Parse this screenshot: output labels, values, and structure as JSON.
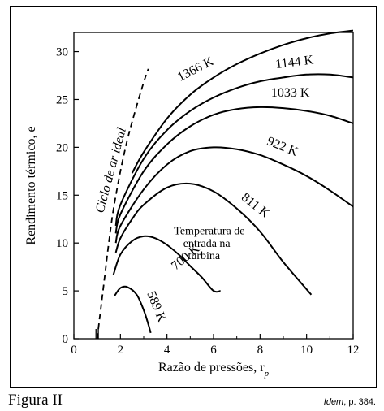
{
  "chart_data": {
    "type": "line",
    "xlabel": "Razão de pressões, r",
    "xlabel_sub": "p",
    "ylabel": "Rendimento térmico, e",
    "xlim": [
      0,
      12
    ],
    "ylim": [
      0,
      32
    ],
    "xticks": [
      0,
      2,
      4,
      6,
      8,
      10,
      12
    ],
    "yticks": [
      0,
      5,
      10,
      15,
      20,
      25,
      30
    ],
    "grid": false,
    "ideal_cycle": {
      "name": "Ciclo de ar ideal",
      "x": [
        1.0,
        1.1,
        1.2,
        1.35,
        1.5,
        1.7,
        2.0,
        2.3,
        2.6,
        3.0,
        3.2
      ],
      "y": [
        0,
        2.0,
        4.0,
        7.0,
        10.0,
        13.5,
        17.5,
        20.8,
        23.5,
        26.8,
        28.2
      ]
    },
    "series": [
      {
        "name": "1366 K",
        "x": [
          2.5,
          3,
          4,
          5,
          6,
          7,
          8,
          9,
          10,
          11,
          12
        ],
        "y": [
          17.3,
          19.5,
          23.0,
          25.5,
          27.3,
          28.7,
          29.8,
          30.7,
          31.4,
          31.9,
          32.2
        ]
      },
      {
        "name": "1144 K",
        "x": [
          1.8,
          2,
          3,
          4,
          5,
          6,
          7,
          8,
          9,
          10,
          11,
          12
        ],
        "y": [
          11.8,
          14.0,
          18.8,
          21.8,
          23.8,
          25.2,
          26.2,
          26.9,
          27.3,
          27.6,
          27.6,
          27.3
        ]
      },
      {
        "name": "1033 K",
        "x": [
          1.8,
          2,
          3,
          4,
          5,
          6,
          7,
          8,
          9,
          10,
          11,
          12
        ],
        "y": [
          11.0,
          13.0,
          17.5,
          20.3,
          22.2,
          23.4,
          24.0,
          24.2,
          24.1,
          23.8,
          23.3,
          22.5
        ]
      },
      {
        "name": "922 K",
        "x": [
          1.8,
          2,
          3,
          4,
          5,
          6,
          7,
          8,
          9,
          10,
          11,
          12
        ],
        "y": [
          10.0,
          11.8,
          15.6,
          18.2,
          19.6,
          20.0,
          19.8,
          19.2,
          18.2,
          17.0,
          15.5,
          13.8
        ]
      },
      {
        "name": "811 K",
        "x": [
          1.8,
          2,
          2.5,
          3,
          4,
          5,
          6,
          7,
          8,
          9,
          10.2
        ],
        "y": [
          9.0,
          10.5,
          12.5,
          14.0,
          15.8,
          16.2,
          15.4,
          13.6,
          11.2,
          8.0,
          4.6
        ]
      },
      {
        "name": "700 K",
        "x": [
          1.7,
          2,
          2.5,
          3,
          3.5,
          4,
          4.5,
          5,
          5.5,
          6,
          6.3
        ],
        "y": [
          6.7,
          8.8,
          10.2,
          10.7,
          10.5,
          9.8,
          8.8,
          7.6,
          6.4,
          5.0,
          5.0
        ]
      },
      {
        "name": "589 K",
        "x": [
          1.75,
          2,
          2.3,
          2.7,
          3.0,
          3.2,
          3.3
        ],
        "y": [
          4.5,
          5.3,
          5.4,
          4.6,
          3.0,
          1.5,
          0.6
        ]
      }
    ],
    "annotation": {
      "lines": [
        "Temperatura de",
        "entrada na",
        "turbina"
      ]
    }
  },
  "figure": {
    "label": "Figura II",
    "source_italic": "Idem",
    "source_rest": ", p. 384."
  }
}
